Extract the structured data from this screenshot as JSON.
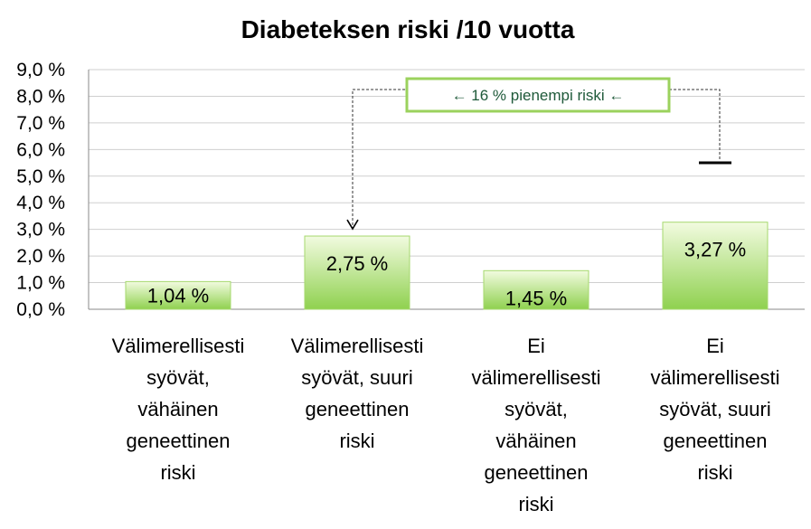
{
  "chart_data": {
    "type": "bar",
    "title": "Diabeteksen riski /10 vuotta",
    "xlabel": "",
    "ylabel": "",
    "ylim": [
      0,
      9
    ],
    "y_ticks": [
      "0,0 %",
      "1,0 %",
      "2,0 %",
      "3,0 %",
      "4,0 %",
      "5,0 %",
      "6,0 %",
      "7,0 %",
      "8,0 %",
      "9,0 %"
    ],
    "grid": true,
    "legend": "none",
    "categories": [
      [
        "Välimerellisesti",
        "syövät,",
        "vähäinen",
        "geneettinen",
        "riski"
      ],
      [
        "Välimerellisesti",
        "syövät, suuri",
        "geneettinen",
        "riski"
      ],
      [
        "Ei",
        "välimerellisesti",
        "syövät,",
        "vähäinen",
        "geneettinen",
        "riski"
      ],
      [
        "Ei",
        "välimerellisesti",
        "syövät, suuri",
        "geneettinen",
        "riski"
      ]
    ],
    "values": [
      1.04,
      2.75,
      1.45,
      3.27
    ],
    "data_labels": [
      "1,04 %",
      "2,75 %",
      "1,45 %",
      "3,27 %"
    ],
    "error_bar": {
      "category_index": 3,
      "upper": 5.5
    },
    "annotation": {
      "text": "←  16 % pienempi riski ←",
      "from_category": 3,
      "to_category": 1
    },
    "colors": {
      "bar_top": "#f2fbe0",
      "bar_bottom": "#8fd14f",
      "bar_border": "#a6d86e",
      "annotation_border": "#9bd25d",
      "annotation_text": "#1f5a3a"
    }
  }
}
